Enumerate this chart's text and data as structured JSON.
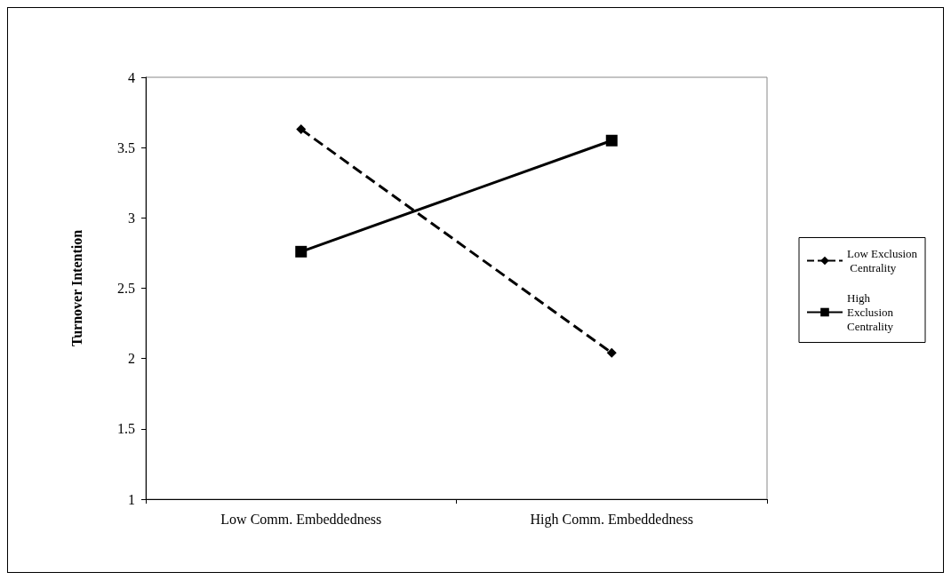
{
  "chart_data": {
    "type": "line",
    "ylabel": "Turnover Intention",
    "categories": [
      "Low Comm. Embeddedness",
      "High Comm. Embeddedness"
    ],
    "series": [
      {
        "name": "Low Exclusion Centrality",
        "color": "#000000",
        "values": [
          3.63,
          2.04
        ],
        "marker": "diamond",
        "line_style": "dashed"
      },
      {
        "name": "High Exclusion Centrality",
        "color": "#000000",
        "values": [
          2.76,
          3.55
        ],
        "marker": "square",
        "line_style": "solid"
      }
    ],
    "ylim": [
      1,
      4
    ],
    "yticks": [
      1,
      1.5,
      2,
      2.5,
      3,
      3.5,
      4
    ],
    "grid": false,
    "legend": "right"
  }
}
